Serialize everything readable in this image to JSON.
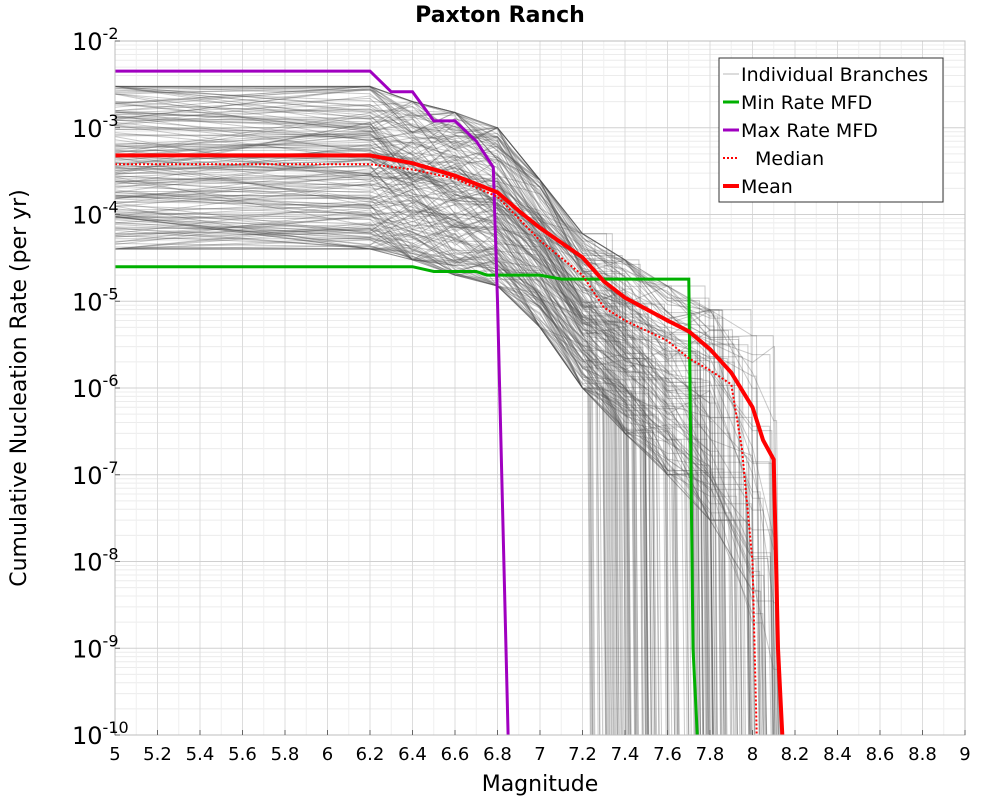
{
  "chart_data": {
    "type": "line",
    "title": "Paxton Ranch",
    "xlabel": "Magnitude",
    "ylabel": "Cumulative Nucleation Rate (per yr)",
    "xlim": [
      5,
      9
    ],
    "ylim": [
      1e-10,
      0.01
    ],
    "yscale": "log",
    "grid": true,
    "legend_position": "top-right",
    "x_ticks": [
      5,
      5.2,
      5.4,
      5.6,
      5.8,
      6,
      6.2,
      6.4,
      6.6,
      6.8,
      7,
      7.2,
      7.4,
      7.6,
      7.8,
      8,
      8.2,
      8.4,
      8.6,
      8.8,
      9
    ],
    "x_tick_labels": [
      "5",
      "5.2",
      "5.4",
      "5.6",
      "5.8",
      "6",
      "6.2",
      "6.4",
      "6.6",
      "6.8",
      "7",
      "7.2",
      "7.4",
      "7.6",
      "7.8",
      "8",
      "8.2",
      "8.4",
      "8.6",
      "8.8",
      "9"
    ],
    "y_tick_exponents": [
      -2,
      -3,
      -4,
      -5,
      -6,
      -7,
      -8,
      -9,
      -10
    ],
    "y_tick_base": "10",
    "series": [
      {
        "name": "Individual Branches",
        "color": "#505050",
        "style": "band",
        "x": [
          5.0,
          6.2,
          6.4,
          6.6,
          6.8,
          7.0,
          7.2,
          7.4,
          7.6,
          7.8,
          8.0,
          8.1
        ],
        "upper": [
          0.003,
          0.003,
          0.002,
          0.0015,
          0.001,
          0.00025,
          6e-05,
          3e-05,
          1.5e-05,
          8e-06,
          4e-06,
          3e-06
        ],
        "lower": [
          4e-05,
          4e-05,
          3e-05,
          2e-05,
          1.5e-05,
          5e-06,
          1e-06,
          3e-07,
          1e-07,
          3e-08,
          1e-09,
          1e-10
        ]
      },
      {
        "name": "Min Rate MFD",
        "color": "#00b000",
        "x": [
          5.0,
          6.4,
          6.5,
          6.7,
          6.75,
          7.0,
          7.1,
          7.7,
          7.72,
          7.74
        ],
        "y": [
          2.5e-05,
          2.5e-05,
          2.2e-05,
          2.2e-05,
          2e-05,
          2e-05,
          1.8e-05,
          1.8e-05,
          1e-09,
          1e-10
        ]
      },
      {
        "name": "Max Rate MFD",
        "color": "#a000c0",
        "x": [
          5.0,
          6.2,
          6.3,
          6.4,
          6.5,
          6.6,
          6.7,
          6.78,
          6.8,
          6.85
        ],
        "y": [
          0.0045,
          0.0045,
          0.0026,
          0.0026,
          0.0012,
          0.0012,
          0.0007,
          0.00035,
          1e-05,
          1e-10
        ]
      },
      {
        "name": "Median",
        "color": "#ff0000",
        "dashed": true,
        "x": [
          5.0,
          6.2,
          6.4,
          6.6,
          6.8,
          6.9,
          7.0,
          7.2,
          7.3,
          7.4,
          7.6,
          7.7,
          7.8,
          7.9,
          7.95,
          8.0,
          8.02
        ],
        "y": [
          0.00038,
          0.00038,
          0.00033,
          0.00026,
          0.00016,
          9e-05,
          5e-05,
          2e-05,
          8.5e-06,
          6e-06,
          3.5e-06,
          2.2e-06,
          1.6e-06,
          1.1e-06,
          2e-07,
          1e-08,
          1e-10
        ]
      },
      {
        "name": "Mean",
        "color": "#ff0000",
        "x": [
          5.0,
          6.2,
          6.4,
          6.6,
          6.8,
          6.9,
          7.0,
          7.2,
          7.3,
          7.4,
          7.6,
          7.7,
          7.8,
          7.9,
          8.0,
          8.05,
          8.1,
          8.12,
          8.14
        ],
        "y": [
          0.00048,
          0.00048,
          0.00039,
          0.00028,
          0.00018,
          0.00011,
          7e-05,
          3.2e-05,
          1.7e-05,
          1.1e-05,
          6e-06,
          4.5e-06,
          2.8e-06,
          1.5e-06,
          6e-07,
          2.5e-07,
          1.5e-07,
          1e-09,
          1e-10
        ]
      }
    ]
  }
}
